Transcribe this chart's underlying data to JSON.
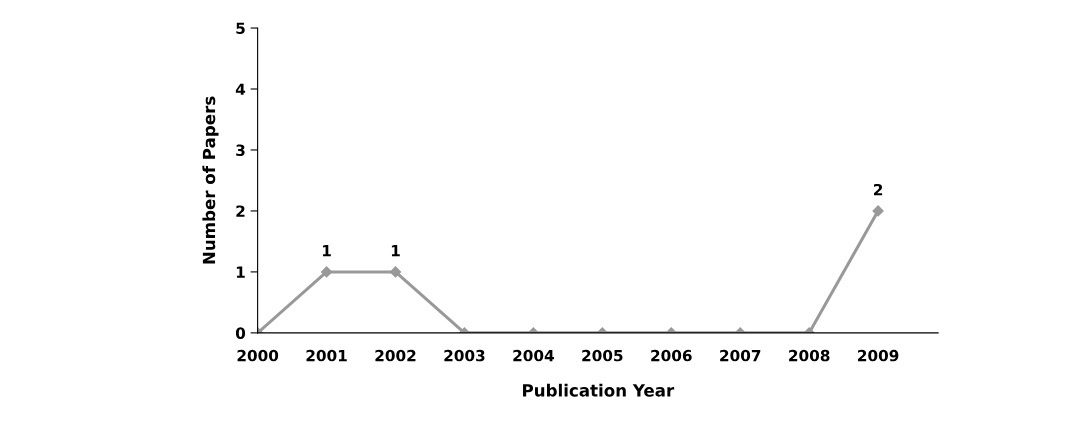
{
  "chart_data": {
    "type": "line",
    "xlabel": "Publication Year",
    "ylabel": "Number of Papers",
    "categories": [
      "2000",
      "2001",
      "2002",
      "2003",
      "2004",
      "2005",
      "2006",
      "2007",
      "2008",
      "2009"
    ],
    "series": [
      {
        "color": "#999999",
        "values": [
          0,
          1,
          1,
          0,
          0,
          0,
          0,
          0,
          0,
          2
        ],
        "value_labels": [
          null,
          "1",
          "1",
          null,
          null,
          null,
          null,
          null,
          null,
          "2"
        ]
      }
    ],
    "ylim": [
      0,
      5
    ],
    "yticks": [
      0,
      1,
      2,
      3,
      4,
      5
    ],
    "marker": "diamond",
    "line_style": "solid",
    "grid": false,
    "legend": false
  }
}
